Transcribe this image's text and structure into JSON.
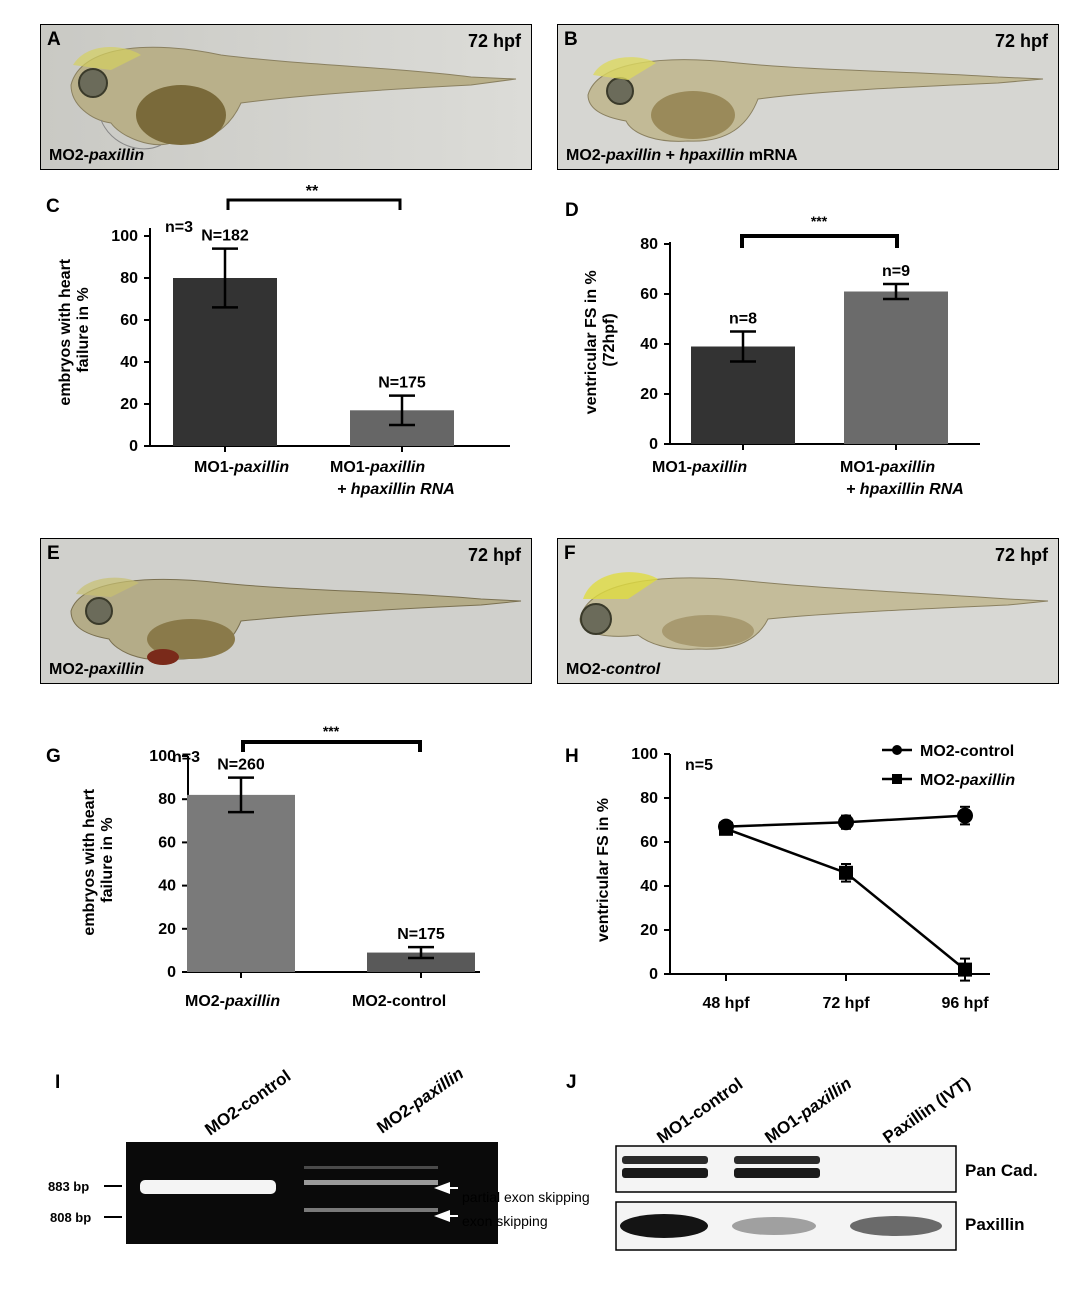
{
  "panels": {
    "A": {
      "letter": "A",
      "hpf": "72 hpf",
      "caption_parts": [
        "MO2-",
        "paxillin"
      ]
    },
    "B": {
      "letter": "B",
      "hpf": "72 hpf",
      "caption_parts": [
        "MO2-",
        "paxillin",
        " + ",
        "hpaxillin",
        " mRNA"
      ]
    },
    "E": {
      "letter": "E",
      "hpf": "72 hpf",
      "caption_parts": [
        "MO2-",
        "paxillin"
      ]
    },
    "F": {
      "letter": "F",
      "hpf": "72 hpf",
      "caption_parts": [
        "MO2-",
        "control"
      ]
    }
  },
  "charts": {
    "C": {
      "letter": "C",
      "ylabel_lines": [
        "embryos with heart",
        "failure in %"
      ],
      "yticks": [
        "100",
        "80",
        "60",
        "40",
        "20",
        "0"
      ],
      "n_label": "n=3",
      "sig": "**",
      "bar_labels": [
        "N=182",
        "N=175"
      ],
      "cat1": [
        "MO1-",
        "paxillin"
      ],
      "cat2_line1": [
        "MO1-",
        "paxillin"
      ],
      "cat2_line2": "+ hpaxillin RNA"
    },
    "D": {
      "letter": "D",
      "ylabel_lines": [
        "ventricular FS in %",
        "(72hpf)"
      ],
      "yticks": [
        "80",
        "60",
        "40",
        "20",
        "0"
      ],
      "sig": "***",
      "bar_labels": [
        "n=8",
        "n=9"
      ],
      "cat1": [
        "MO1-",
        "paxillin"
      ],
      "cat2_line1": [
        "MO1-",
        "paxillin"
      ],
      "cat2_line2": "+ hpaxillin RNA"
    },
    "G": {
      "letter": "G",
      "ylabel_lines": [
        "embryos with heart",
        "failure in %"
      ],
      "yticks": [
        "100",
        "80",
        "60",
        "40",
        "20",
        "0"
      ],
      "n_label": "n=3",
      "sig": "***",
      "bar_labels": [
        "N=260",
        "N=175"
      ],
      "cat1": [
        "MO2-",
        "paxillin"
      ],
      "cat2": "MO2-control"
    },
    "H": {
      "letter": "H",
      "ylabel": "ventricular FS in %",
      "yticks": [
        "100",
        "80",
        "60",
        "40",
        "20",
        "0"
      ],
      "n_label": "n=5",
      "xticks": [
        "48 hpf",
        "72 hpf",
        "96 hpf"
      ],
      "legend": [
        {
          "prefix": "MO2-",
          "name": "control",
          "italic": false
        },
        {
          "prefix": "MO2-",
          "name": "paxillin",
          "italic": true
        }
      ]
    }
  },
  "chart_data": [
    {
      "id": "C",
      "type": "bar",
      "categories": [
        "MO1-paxillin",
        "MO1-paxillin + hpaxillin RNA"
      ],
      "values": [
        80,
        17
      ],
      "errors": [
        14,
        7
      ],
      "ylim": [
        0,
        100
      ],
      "colors": [
        "#333333",
        "#666666"
      ]
    },
    {
      "id": "D",
      "type": "bar",
      "categories": [
        "MO1-paxillin",
        "MO1-paxillin + hpaxillin RNA"
      ],
      "values": [
        39,
        61
      ],
      "errors": [
        6,
        3
      ],
      "ylim": [
        0,
        80
      ],
      "colors": [
        "#333333",
        "#6b6b6b"
      ]
    },
    {
      "id": "G",
      "type": "bar",
      "categories": [
        "MO2-paxillin",
        "MO2-control"
      ],
      "values": [
        82,
        9
      ],
      "errors": [
        8,
        2.5
      ],
      "ylim": [
        0,
        100
      ],
      "colors": [
        "#7a7a7a",
        "#595959"
      ]
    },
    {
      "id": "H",
      "type": "line",
      "x": [
        "48 hpf",
        "72 hpf",
        "96 hpf"
      ],
      "ylim": [
        0,
        100
      ],
      "series": [
        {
          "name": "MO2-control",
          "values": [
            67,
            69,
            72
          ],
          "errors": [
            2,
            3,
            4
          ],
          "marker": "circle"
        },
        {
          "name": "MO2-paxillin",
          "values": [
            66,
            46,
            2
          ],
          "errors": [
            2,
            4,
            5
          ],
          "marker": "square"
        }
      ]
    }
  ],
  "gel_I": {
    "letter": "I",
    "lanes": [
      "MO2-control",
      "MO2-paxillin"
    ],
    "markers": [
      "883 bp",
      "808 bp"
    ],
    "annotations": [
      "partial exon skipping",
      "exon skipping"
    ]
  },
  "blot_J": {
    "letter": "J",
    "lanes": [
      "MO1-control",
      "MO1-paxillin",
      "Paxillin (IVT)"
    ],
    "rows": [
      "Pan Cad.",
      "Paxillin"
    ]
  },
  "colors": {
    "photo_bg": "#d4d4d0",
    "gel_bg": "#0a0a0a",
    "blot_bg": "#f2f2f2"
  }
}
